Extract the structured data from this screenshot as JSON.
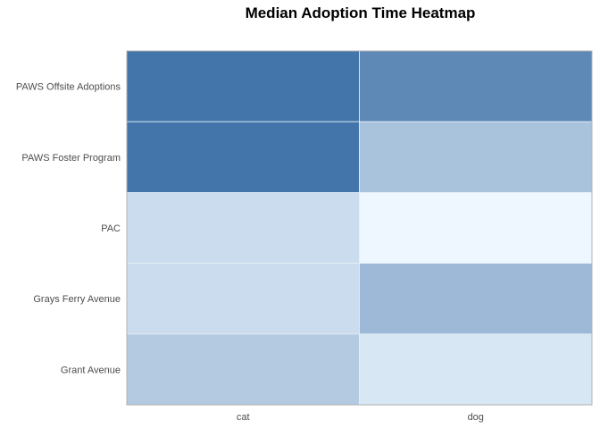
{
  "chart_data": {
    "type": "heatmap",
    "title": "Median Adoption Time Heatmap",
    "xlabel": "",
    "ylabel": "",
    "x_categories": [
      "cat",
      "dog"
    ],
    "y_categories": [
      "Grant Avenue",
      "Grays Ferry Avenue",
      "PAC",
      "PAWS Foster Program",
      "PAWS Offsite Adoptions"
    ],
    "cells": [
      {
        "x": "cat",
        "y": "PAWS Offsite Adoptions",
        "value": 0.95
      },
      {
        "x": "dog",
        "y": "PAWS Offsite Adoptions",
        "value": 0.8
      },
      {
        "x": "cat",
        "y": "PAWS Foster Program",
        "value": 0.95
      },
      {
        "x": "dog",
        "y": "PAWS Foster Program",
        "value": 0.38
      },
      {
        "x": "cat",
        "y": "PAC",
        "value": 0.2
      },
      {
        "x": "dog",
        "y": "PAC",
        "value": 0.0
      },
      {
        "x": "cat",
        "y": "Grays Ferry Avenue",
        "value": 0.2
      },
      {
        "x": "dog",
        "y": "Grays Ferry Avenue",
        "value": 0.45
      },
      {
        "x": "cat",
        "y": "Grant Avenue",
        "value": 0.33
      },
      {
        "x": "dog",
        "y": "Grant Avenue",
        "value": 0.12
      }
    ],
    "value_range": [
      0,
      1
    ],
    "color_low": "#eef7ff",
    "color_high": "#3a6ea5",
    "panel_border_color": "#b3b3b3",
    "cell_separator_color": "#e6eef7",
    "grid": false,
    "legend": "none"
  }
}
